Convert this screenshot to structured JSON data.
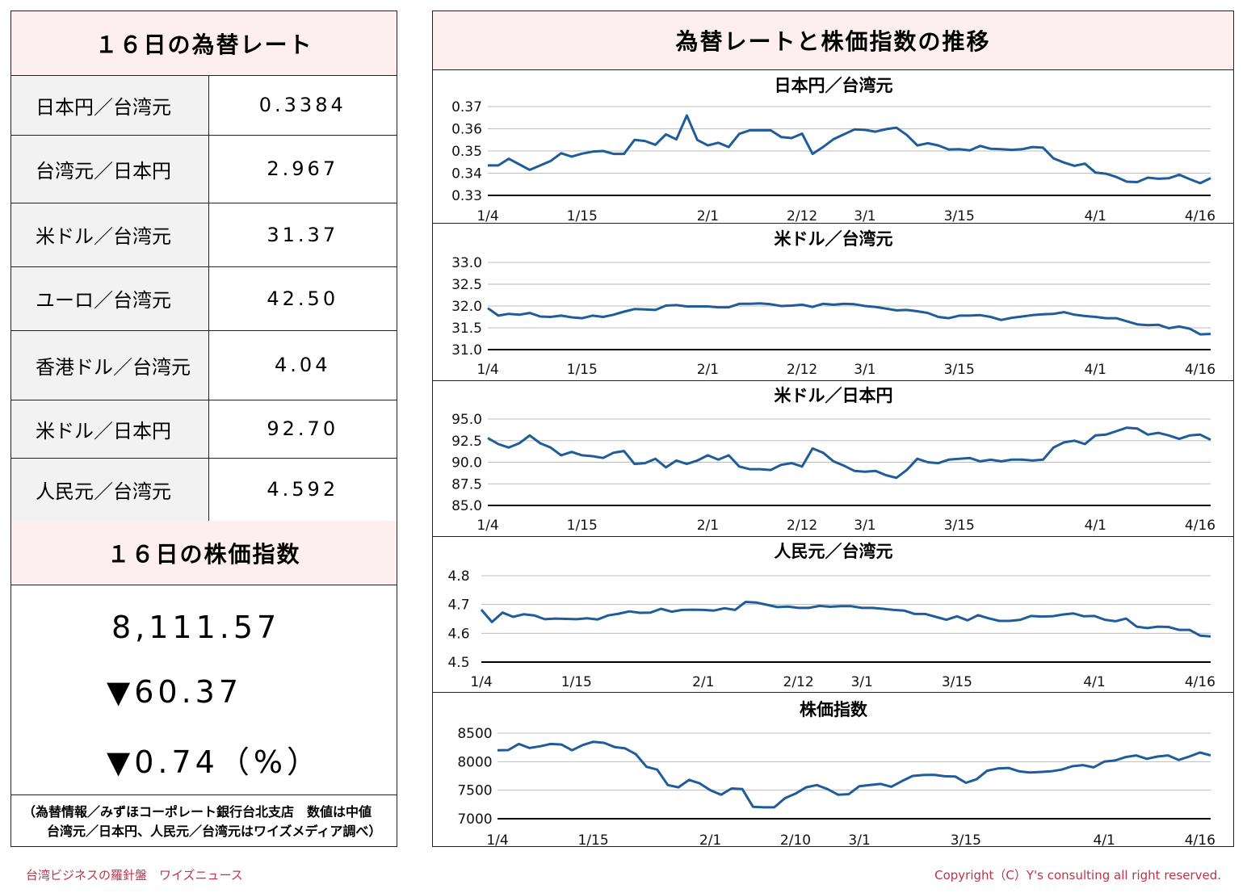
{
  "left": {
    "rates_title": "１６日の為替レート",
    "rates": [
      {
        "name": "日本円／台湾元",
        "value": "0.3384"
      },
      {
        "name": "台湾元／日本円",
        "value": "2.967"
      },
      {
        "name": "米ドル／台湾元",
        "value": "31.37"
      },
      {
        "name": "ユーロ／台湾元",
        "value": "42.50"
      },
      {
        "name": "香港ドル／台湾元",
        "value": "4.04"
      },
      {
        "name": "米ドル／日本円",
        "value": "92.70"
      },
      {
        "name": "人民元／台湾元",
        "value": "4.592"
      }
    ],
    "stock_title": "１６日の株価指数",
    "stock_value": "8,111.57",
    "stock_change": "▼60.37",
    "stock_pct": "▼0.74（%）",
    "note_line1": "（為替情報／みずほコーポレート銀行台北支店　数値は中値",
    "note_line2": "台湾元／日本円、人民元／台湾元はワイズメディア調べ）"
  },
  "right": {
    "title": "為替レートと株価指数の推移"
  },
  "footer": {
    "left": "台湾ビジネスの羅針盤　ワイズニュース",
    "right": "Copyright（C）Y's consulting all right reserved."
  },
  "colors": {
    "line": "#1f5c99",
    "header_bg": "#fdeff0",
    "label_bg": "#f2f2f2",
    "footer": "#c0334a"
  },
  "chart_data": [
    {
      "type": "line",
      "title": "日本円／台湾元",
      "ylim": [
        0.33,
        0.37
      ],
      "yticks": [
        0.37,
        0.36,
        0.35,
        0.34,
        0.33
      ],
      "ytick_labels": [
        "0.37",
        "0.36",
        "0.35",
        "0.34",
        "0.33"
      ],
      "xtick_labels": [
        {
          "label": "1/4",
          "index": 0
        },
        {
          "label": "1/15",
          "index": 9
        },
        {
          "label": "2/1",
          "index": 21
        },
        {
          "label": "2/12",
          "index": 30
        },
        {
          "label": "3/1",
          "index": 36
        },
        {
          "label": "3/15",
          "index": 45
        },
        {
          "label": "4/1",
          "index": 58
        },
        {
          "label": "4/16",
          "index": 68
        }
      ],
      "values": [
        0.3435,
        0.3435,
        0.3465,
        0.344,
        0.3415,
        0.3435,
        0.3455,
        0.349,
        0.3475,
        0.3488,
        0.3497,
        0.35,
        0.3487,
        0.3487,
        0.355,
        0.3545,
        0.3528,
        0.3575,
        0.3552,
        0.366,
        0.355,
        0.3525,
        0.3537,
        0.3518,
        0.3577,
        0.3593,
        0.3593,
        0.3593,
        0.3563,
        0.3558,
        0.3578,
        0.3487,
        0.3518,
        0.3553,
        0.3575,
        0.3597,
        0.3595,
        0.3587,
        0.3598,
        0.3605,
        0.3572,
        0.3525,
        0.3535,
        0.3525,
        0.3507,
        0.3508,
        0.3503,
        0.3523,
        0.351,
        0.3508,
        0.3505,
        0.3508,
        0.3518,
        0.3515,
        0.3467,
        0.3448,
        0.3433,
        0.3443,
        0.3403,
        0.3398,
        0.3383,
        0.3362,
        0.336,
        0.338,
        0.3375,
        0.3377,
        0.3393,
        0.3373,
        0.3355,
        0.3378
      ]
    },
    {
      "type": "line",
      "title": "米ドル／台湾元",
      "ylim": [
        31.0,
        33.0
      ],
      "yticks": [
        33.0,
        32.5,
        32.0,
        31.5,
        31.0
      ],
      "ytick_labels": [
        "33.0",
        "32.5",
        "32.0",
        "31.5",
        "31.0"
      ],
      "xtick_labels": [
        {
          "label": "1/4",
          "index": 0
        },
        {
          "label": "1/15",
          "index": 9
        },
        {
          "label": "2/1",
          "index": 21
        },
        {
          "label": "2/12",
          "index": 30
        },
        {
          "label": "3/1",
          "index": 36
        },
        {
          "label": "3/15",
          "index": 45
        },
        {
          "label": "4/1",
          "index": 58
        },
        {
          "label": "4/16",
          "index": 68
        }
      ],
      "values": [
        31.95,
        31.78,
        31.82,
        31.8,
        31.84,
        31.76,
        31.75,
        31.78,
        31.74,
        31.72,
        31.78,
        31.75,
        31.8,
        31.87,
        31.93,
        31.92,
        31.91,
        32.01,
        32.02,
        31.99,
        31.99,
        31.99,
        31.97,
        31.97,
        32.05,
        32.05,
        32.06,
        32.04,
        32.0,
        32.01,
        32.03,
        31.98,
        32.05,
        32.03,
        32.05,
        32.04,
        32.0,
        31.98,
        31.94,
        31.9,
        31.91,
        31.88,
        31.84,
        31.75,
        31.72,
        31.78,
        31.78,
        31.79,
        31.75,
        31.68,
        31.73,
        31.76,
        31.79,
        31.81,
        31.82,
        31.86,
        31.8,
        31.77,
        31.75,
        31.72,
        31.72,
        31.65,
        31.58,
        31.56,
        31.57,
        31.49,
        31.53,
        31.48,
        31.35,
        31.36
      ]
    },
    {
      "type": "line",
      "title": "米ドル／日本円",
      "ylim": [
        85.0,
        95.0
      ],
      "yticks": [
        95.0,
        92.5,
        90.0,
        87.5,
        85.0
      ],
      "ytick_labels": [
        "95.0",
        "92.5",
        "90.0",
        "87.5",
        "85.0"
      ],
      "xtick_labels": [
        {
          "label": "1/4",
          "index": 0
        },
        {
          "label": "1/15",
          "index": 9
        },
        {
          "label": "2/1",
          "index": 21
        },
        {
          "label": "2/12",
          "index": 30
        },
        {
          "label": "3/1",
          "index": 36
        },
        {
          "label": "3/15",
          "index": 45
        },
        {
          "label": "4/1",
          "index": 58
        },
        {
          "label": "4/16",
          "index": 68
        }
      ],
      "values": [
        92.8,
        92.1,
        91.7,
        92.2,
        93.1,
        92.2,
        91.7,
        90.8,
        91.2,
        90.8,
        90.7,
        90.5,
        91.1,
        91.3,
        89.8,
        89.9,
        90.4,
        89.4,
        90.2,
        89.8,
        90.2,
        90.8,
        90.3,
        90.8,
        89.5,
        89.2,
        89.2,
        89.1,
        89.7,
        89.9,
        89.5,
        91.6,
        91.1,
        90.1,
        89.6,
        89.0,
        88.9,
        89.0,
        88.5,
        88.2,
        89.1,
        90.4,
        90.0,
        89.9,
        90.3,
        90.4,
        90.5,
        90.1,
        90.3,
        90.1,
        90.3,
        90.3,
        90.2,
        90.3,
        91.7,
        92.3,
        92.5,
        92.1,
        93.1,
        93.2,
        93.6,
        94.0,
        93.9,
        93.2,
        93.4,
        93.1,
        92.7,
        93.1,
        93.2,
        92.6
      ]
    },
    {
      "type": "line",
      "title": "人民元／台湾元",
      "ylim": [
        4.5,
        4.8
      ],
      "yticks": [
        4.8,
        4.7,
        4.6,
        4.5
      ],
      "ytick_labels": [
        "4.8",
        "4.7",
        "4.6",
        "4.5"
      ],
      "xtick_labels": [
        {
          "label": "1/4",
          "index": 0
        },
        {
          "label": "1/15",
          "index": 9
        },
        {
          "label": "2/1",
          "index": 21
        },
        {
          "label": "2/12",
          "index": 30
        },
        {
          "label": "3/1",
          "index": 36
        },
        {
          "label": "3/15",
          "index": 45
        },
        {
          "label": "4/1",
          "index": 58
        },
        {
          "label": "4/16",
          "index": 68
        }
      ],
      "values": [
        4.682,
        4.639,
        4.672,
        4.657,
        4.666,
        4.662,
        4.649,
        4.651,
        4.65,
        4.649,
        4.652,
        4.648,
        4.662,
        4.668,
        4.676,
        4.671,
        4.672,
        4.685,
        4.675,
        4.681,
        4.682,
        4.681,
        4.679,
        4.687,
        4.681,
        4.709,
        4.707,
        4.699,
        4.691,
        4.693,
        4.688,
        4.688,
        4.695,
        4.692,
        4.694,
        4.694,
        4.688,
        4.688,
        4.685,
        4.681,
        4.679,
        4.667,
        4.667,
        4.657,
        4.647,
        4.659,
        4.645,
        4.663,
        4.652,
        4.643,
        4.643,
        4.647,
        4.66,
        4.658,
        4.659,
        4.665,
        4.669,
        4.659,
        4.66,
        4.647,
        4.642,
        4.651,
        4.623,
        4.618,
        4.623,
        4.622,
        4.612,
        4.612,
        4.592,
        4.589
      ]
    },
    {
      "type": "line",
      "title": "株価指数",
      "ylim": [
        7000,
        8500
      ],
      "yticks": [
        8500,
        8000,
        7500,
        7000
      ],
      "ytick_labels": [
        "8500",
        "8000",
        "7500",
        "7000"
      ],
      "xtick_labels": [
        {
          "label": "1/4",
          "index": 0
        },
        {
          "label": "1/15",
          "index": 9
        },
        {
          "label": "2/1",
          "index": 20
        },
        {
          "label": "2/10",
          "index": 28
        },
        {
          "label": "3/1",
          "index": 34
        },
        {
          "label": "3/15",
          "index": 44
        },
        {
          "label": "4/1",
          "index": 57
        },
        {
          "label": "4/16",
          "index": 66
        }
      ],
      "values": [
        8200,
        8203,
        8310,
        8240,
        8270,
        8310,
        8300,
        8200,
        8290,
        8348,
        8330,
        8256,
        8233,
        8130,
        7910,
        7860,
        7590,
        7550,
        7680,
        7620,
        7500,
        7420,
        7530,
        7520,
        7210,
        7200,
        7200,
        7360,
        7440,
        7550,
        7590,
        7520,
        7420,
        7430,
        7570,
        7590,
        7610,
        7560,
        7660,
        7750,
        7765,
        7770,
        7745,
        7740,
        7630,
        7690,
        7840,
        7880,
        7890,
        7830,
        7810,
        7820,
        7830,
        7860,
        7920,
        7940,
        7900,
        8000,
        8020,
        8080,
        8110,
        8050,
        8090,
        8110,
        8030,
        8090,
        8160,
        8110
      ]
    }
  ]
}
